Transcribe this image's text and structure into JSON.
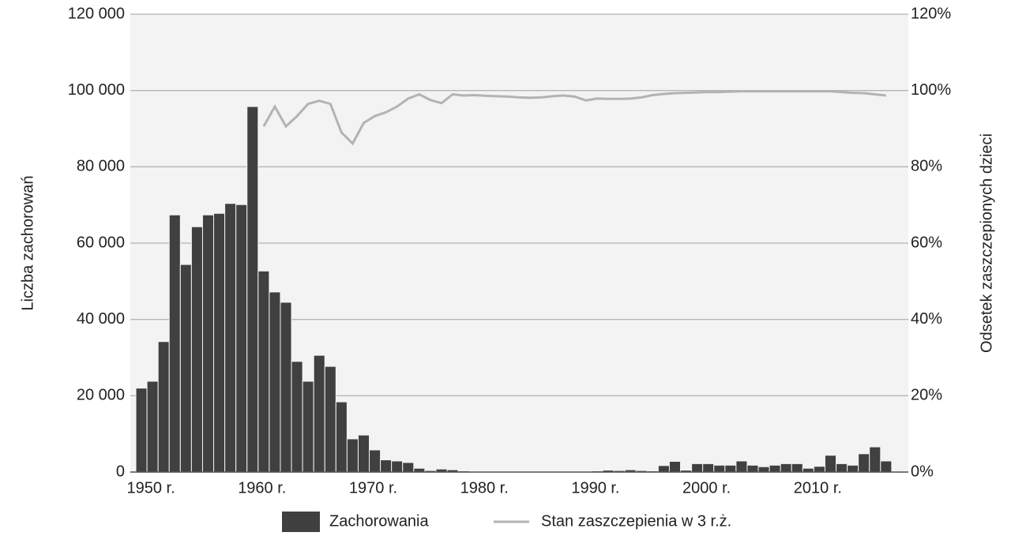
{
  "chart_data": {
    "type": "bar",
    "x": [
      1950,
      1951,
      1952,
      1953,
      1954,
      1955,
      1956,
      1957,
      1958,
      1959,
      1960,
      1961,
      1962,
      1963,
      1964,
      1965,
      1966,
      1967,
      1968,
      1969,
      1970,
      1971,
      1972,
      1973,
      1974,
      1975,
      1976,
      1977,
      1978,
      1979,
      1980,
      1981,
      1982,
      1983,
      1984,
      1985,
      1986,
      1987,
      1988,
      1989,
      1990,
      1991,
      1992,
      1993,
      1994,
      1995,
      1996,
      1997,
      1998,
      1999,
      2000,
      2001,
      2002,
      2003,
      2004,
      2005,
      2006,
      2007,
      2008,
      2009,
      2010,
      2011,
      2012,
      2013,
      2014,
      2015,
      2016,
      2017
    ],
    "series": [
      {
        "name": "Zachorowania",
        "type": "bar",
        "color": "#404040",
        "values": [
          22000,
          23800,
          34200,
          67400,
          54400,
          64300,
          67400,
          67800,
          70400,
          70100,
          95800,
          52700,
          47200,
          44500,
          29000,
          23800,
          30600,
          27700,
          18400,
          8700,
          9700,
          5800,
          3200,
          2900,
          2500,
          1000,
          400,
          800,
          600,
          300,
          200,
          200,
          200,
          200,
          200,
          200,
          200,
          200,
          200,
          200,
          200,
          300,
          500,
          400,
          600,
          400,
          300,
          1700,
          2800,
          500,
          2200,
          2200,
          1800,
          1800,
          2900,
          1800,
          1400,
          1800,
          2200,
          2200,
          1000,
          1500,
          4400,
          2200,
          1800,
          4800,
          6600,
          2900
        ]
      },
      {
        "name": "Stan zaszczepienia w 3 r.ż.",
        "type": "line",
        "axis": "y2",
        "color": "#b3b3b3",
        "values": [
          null,
          null,
          null,
          null,
          null,
          null,
          null,
          null,
          null,
          null,
          null,
          90.6,
          95.8,
          90.6,
          93.3,
          96.5,
          97.3,
          96.5,
          89,
          86.1,
          91.5,
          93.3,
          94.3,
          95.8,
          97.9,
          99,
          97.5,
          96.7,
          99,
          98.7,
          98.8,
          98.6,
          98.5,
          98.4,
          98.2,
          98.1,
          98.2,
          98.5,
          98.7,
          98.4,
          97.4,
          97.9,
          97.8,
          97.8,
          97.9,
          98.2,
          98.8,
          99.1,
          99.3,
          99.4,
          99.5,
          99.6,
          99.6,
          99.7,
          99.8,
          99.8,
          99.8,
          99.8,
          99.8,
          99.8,
          99.8,
          99.8,
          99.8,
          99.6,
          99.4,
          99.3,
          99,
          98.7
        ]
      }
    ],
    "xlim": [
      1949,
      2019
    ],
    "xticks": [
      {
        "value": 1950,
        "label": "1950 r."
      },
      {
        "value": 1960,
        "label": "1960 r."
      },
      {
        "value": 1970,
        "label": "1970 r."
      },
      {
        "value": 1980,
        "label": "1980 r."
      },
      {
        "value": 1990,
        "label": "1990 r."
      },
      {
        "value": 2000,
        "label": "2000 r."
      },
      {
        "value": 2010,
        "label": "2010 r."
      }
    ],
    "ylim": [
      0,
      120000
    ],
    "yticks": [
      0,
      {
        "value": 20000,
        "label": "20 000"
      },
      {
        "value": 40000,
        "label": "40 000"
      },
      {
        "value": 60000,
        "label": "60 000"
      },
      {
        "value": 80000,
        "label": "80 000"
      },
      {
        "value": 100000,
        "label": "100 000"
      },
      {
        "value": 120000,
        "label": "120 000"
      }
    ],
    "y2lim": [
      0,
      120
    ],
    "y2ticks": [
      {
        "value": 0,
        "label": "0%"
      },
      {
        "value": 20,
        "label": "20%"
      },
      {
        "value": 40,
        "label": "40%"
      },
      {
        "value": 60,
        "label": "60%"
      },
      {
        "value": 80,
        "label": "80%"
      },
      {
        "value": 100,
        "label": "100%"
      },
      {
        "value": 120,
        "label": "120%"
      }
    ],
    "ylabel": "Liczba zachorowań",
    "y2label": "Odsetek zaszczepionych dzieci",
    "grid": true,
    "legend": "bottom"
  }
}
